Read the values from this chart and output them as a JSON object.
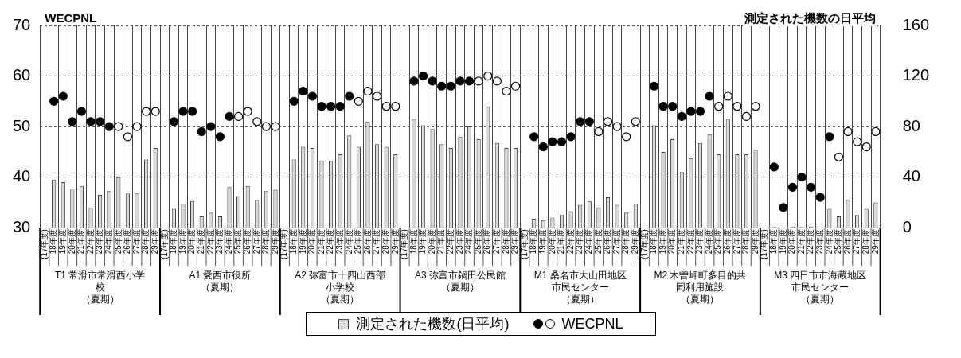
{
  "chart_data": {
    "type": "bar",
    "categories": [
      "(17年度)",
      "18年度",
      "19年度",
      "20年度",
      "21年度",
      "22年度",
      "23年度",
      "24年度",
      "25年度",
      "26年度",
      "27年度",
      "28年度",
      "29年度",
      "(17年度)",
      "18年度",
      "19年度",
      "20年度",
      "21年度",
      "22年度",
      "23年度",
      "24年度",
      "25年度",
      "26年度",
      "27年度",
      "28年度",
      "29年度",
      "(17年度)",
      "18年度",
      "19年度",
      "20年度",
      "21年度",
      "22年度",
      "23年度",
      "24年度",
      "25年度",
      "26年度",
      "27年度",
      "28年度",
      "29年度",
      "(17年度)",
      "18年度",
      "19年度",
      "20年度",
      "21年度",
      "22年度",
      "23年度",
      "24年度",
      "25年度",
      "26年度",
      "27年度",
      "28年度",
      "29年度",
      "(17年度)",
      "18年度",
      "19年度",
      "20年度",
      "21年度",
      "22年度",
      "23年度",
      "24年度",
      "25年度",
      "26年度",
      "27年度",
      "28年度",
      "29年度",
      "(17年度)",
      "18年度",
      "19年度",
      "20年度",
      "21年度",
      "22年度",
      "23年度",
      "24年度",
      "25年度",
      "26年度",
      "27年度",
      "28年度",
      "29年度",
      "(17年度)",
      "18年度",
      "19年度",
      "20年度",
      "21年度",
      "22年度",
      "23年度",
      "24年度",
      "25年度",
      "26年度",
      "27年度",
      "28年度",
      "29年度"
    ],
    "series": [
      {
        "name": "測定された機数(日平均)",
        "axis": "y2",
        "color": "#d9d9d9",
        "values": [
          null,
          38,
          36,
          31,
          33,
          16,
          26,
          29,
          40,
          27,
          27,
          54,
          63,
          null,
          15,
          19,
          21,
          9,
          12,
          9,
          32,
          25,
          33,
          22,
          29,
          30,
          null,
          54,
          64,
          63,
          53,
          53,
          58,
          73,
          64,
          84,
          66,
          64,
          58,
          null,
          86,
          81,
          78,
          66,
          63,
          72,
          80,
          70,
          96,
          67,
          63,
          63,
          null,
          7,
          6,
          8,
          10,
          13,
          18,
          21,
          16,
          24,
          18,
          12,
          19,
          null,
          81,
          60,
          70,
          44,
          55,
          67,
          74,
          58,
          86,
          58,
          58,
          62,
          null,
          1,
          null,
          1,
          1,
          1,
          null,
          15,
          9,
          22,
          10,
          15,
          20
        ]
      },
      {
        "name": "WECPNL",
        "type": "scatter",
        "color": "#000000",
        "values": [
          null,
          55,
          56,
          51,
          53,
          51,
          51,
          50,
          null,
          null,
          null,
          null,
          null,
          null,
          51,
          53,
          53,
          49,
          50,
          48,
          52,
          null,
          null,
          null,
          null,
          null,
          null,
          55,
          57,
          56,
          54,
          54,
          54,
          56,
          null,
          null,
          null,
          null,
          null,
          null,
          59,
          60,
          59,
          58,
          58,
          59,
          59,
          null,
          null,
          null,
          null,
          null,
          null,
          48,
          46,
          47,
          47,
          48,
          51,
          51,
          null,
          null,
          null,
          null,
          null,
          null,
          58,
          54,
          54,
          52,
          53,
          53,
          56,
          null,
          null,
          null,
          null,
          null,
          null,
          42,
          34,
          38,
          40,
          38,
          36,
          48,
          null,
          null,
          null,
          null,
          null
        ]
      },
      {
        "type": "scatter",
        "color": "#ffffff",
        "values": [
          null,
          null,
          null,
          null,
          null,
          null,
          null,
          null,
          50,
          48,
          50,
          53,
          53,
          null,
          null,
          null,
          null,
          null,
          null,
          null,
          null,
          52,
          53,
          51,
          50,
          50,
          null,
          null,
          null,
          null,
          null,
          null,
          null,
          null,
          55,
          57,
          56,
          54,
          54,
          null,
          null,
          null,
          null,
          null,
          null,
          null,
          null,
          59,
          60,
          59,
          57,
          58,
          null,
          null,
          null,
          null,
          null,
          null,
          null,
          null,
          49,
          51,
          50,
          48,
          51,
          null,
          null,
          null,
          null,
          null,
          null,
          null,
          null,
          54,
          56,
          54,
          52,
          54,
          null,
          null,
          null,
          null,
          null,
          null,
          null,
          null,
          44,
          49,
          47,
          46,
          49
        ]
      }
    ],
    "ylabel": "WECPNL",
    "y2label": "測定された機数の日平均",
    "ylim": [
      30,
      70
    ],
    "yticks": [
      30,
      40,
      50,
      60,
      70
    ],
    "y2lim": [
      0,
      160
    ],
    "y2ticks": [
      0,
      40,
      80,
      120,
      160
    ],
    "annotations": [
      "T1 常滑市常滑西小学校（夏期）",
      "A1 愛西市役所（夏期）",
      "A2 弥富市十四山西部小学校（夏期）",
      "A3 弥富市鍋田公民館（夏期）",
      "M1 桑名市大山田地区市民センター（夏期）",
      "M2 木曽岬町多目的共同利用施設（夏期）",
      "M3 四日市市海蔵地区市民センター（夏期）"
    ],
    "grid": true,
    "legend": "bottom",
    "marker": "circle"
  }
}
